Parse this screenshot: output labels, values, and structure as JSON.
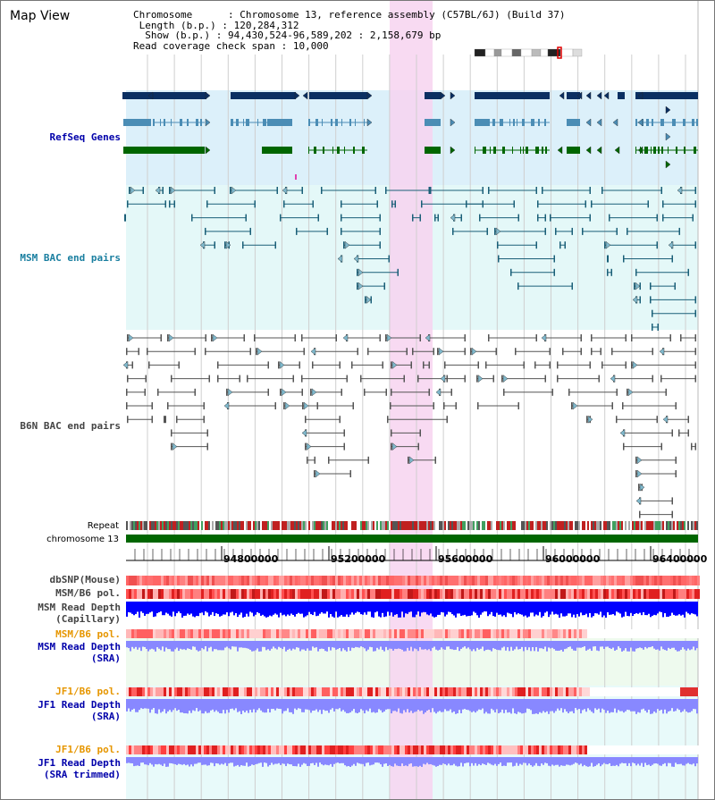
{
  "view": {
    "title": "Map View"
  },
  "info": {
    "chromosome_label": "Chromosome",
    "chromosome_value": "Chromosome 13, reference assembly (C57BL/6J) (Build 37)",
    "length_label": "Length (b.p.)",
    "length_value": "120,284,312",
    "show_label": "Show (b.p.)",
    "show_value": "94,430,524-96,589,202 : 2,158,679 bp",
    "coverage_label": "Read coverage check span",
    "coverage_value": "10,000"
  },
  "tracks": {
    "refseq": "RefSeq Genes",
    "msm_bac": "MSM BAC end pairs",
    "b6n_bac": "B6N BAC end pairs",
    "repeat": "Repeat",
    "chromosome": "chromosome 13",
    "dbsnp": "dbSNP(Mouse)",
    "msm_b6_pol_1": "MSM/B6 pol.",
    "msm_read_depth_cap": "MSM Read Depth\n(Capillary)",
    "msm_b6_pol_2": "MSM/B6 pol.",
    "msm_read_depth_sra": "MSM Read Depth\n(SRA)",
    "jf1_b6_pol_1": "JF1/B6 pol.",
    "jf1_read_depth_sra": "JF1 Read Depth\n(SRA)",
    "jf1_b6_pol_2": "JF1/B6 pol.",
    "jf1_read_depth_trim": "JF1 Read Depth\n(SRA trimmed)"
  },
  "axis": {
    "ticks": [
      "94800000",
      "95200000",
      "95600000",
      "96000000",
      "96400000"
    ]
  },
  "colors": {
    "highlight": "#f7d3f0",
    "refseq_bg": "#dcf0fa",
    "msm_bg": "#e4f8f8",
    "gene_navy": "#0b2f62",
    "gene_teal": "#4b8db5",
    "gene_green": "#006600",
    "msm_pair": "#1a5f78",
    "b6n_pair": "#555555",
    "depth_blue": "#0000ff",
    "depth_lavender": "#8888ff",
    "pol_red": "#e02020",
    "label_navy": "#0000aa",
    "label_teal": "#1a7fa0",
    "label_orange": "#e69600",
    "label_dark": "#333333"
  }
}
